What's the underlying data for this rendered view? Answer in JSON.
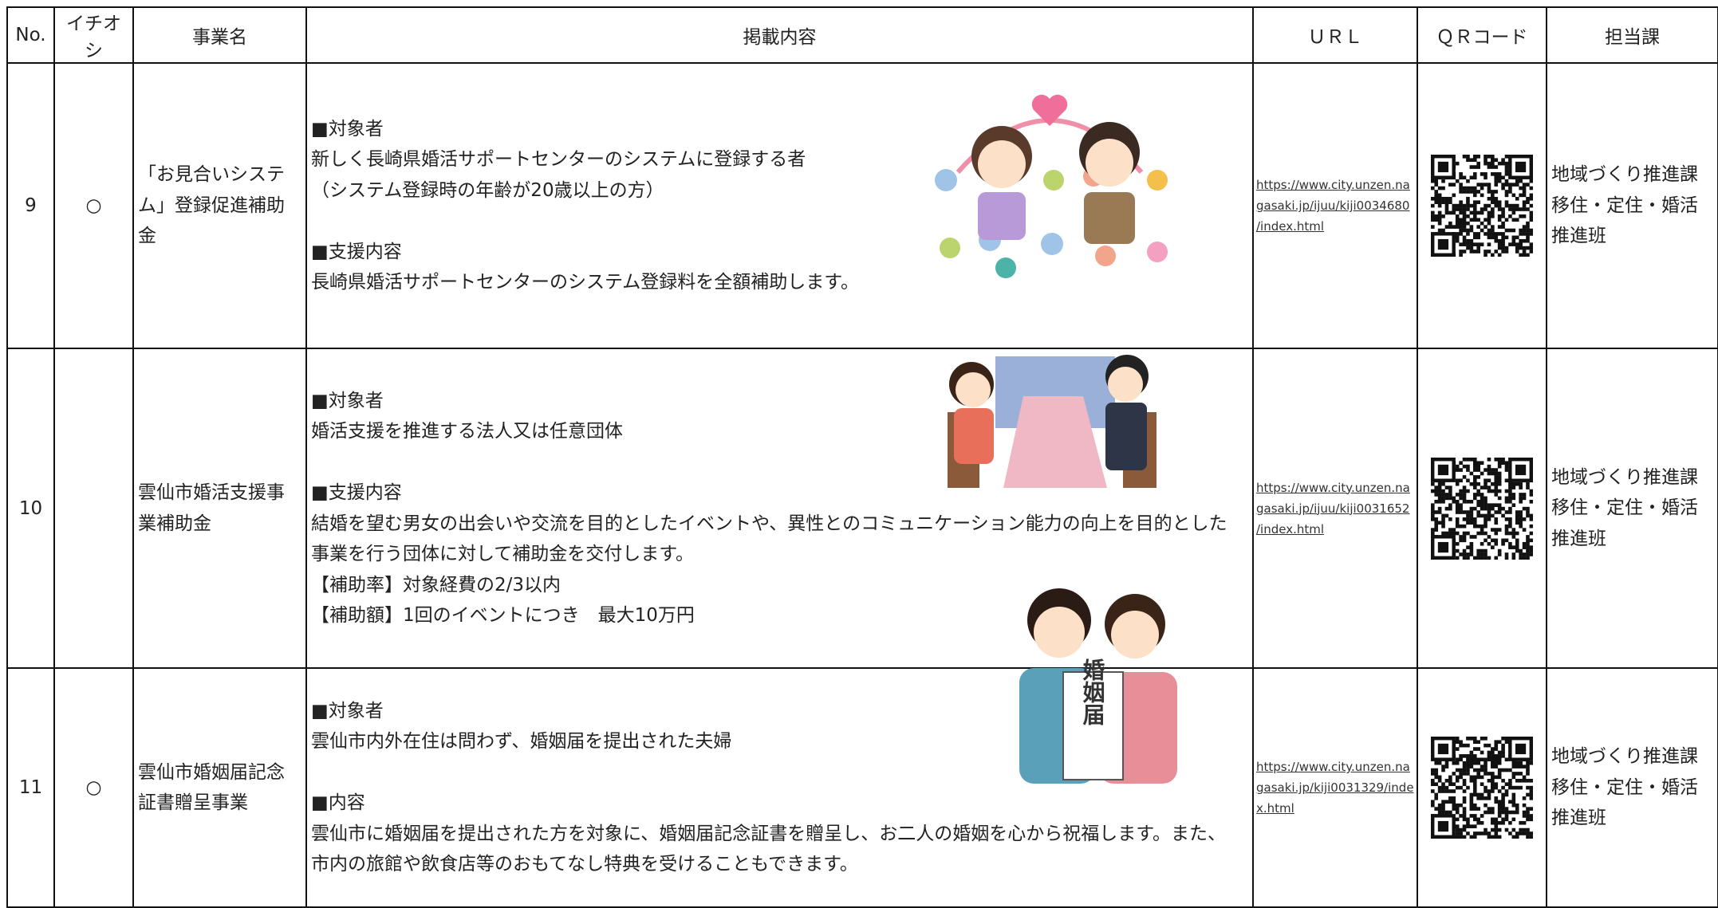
{
  "table": {
    "header": [
      "No.",
      "イチオシ",
      "事業名",
      "掲載内容",
      "ＵＲＬ",
      "ＱＲコード",
      "担当課"
    ],
    "rows": [
      {
        "no": "9",
        "pick": "○",
        "name": [
          "「お見合いシステ",
          "ム」登録促進補助",
          "金"
        ],
        "sections": [
          {
            "heading": "■対象者",
            "lines": [
              "新しく長崎県婚活サポートセンターのシステムに登録する者",
              "（システム登録時の年齢が20歳以上の方）"
            ]
          },
          {
            "heading": "■支援内容",
            "lines": [
              "長崎県婚活サポートセンターのシステム登録料を全額補助します。"
            ]
          }
        ],
        "url": [
          "https://www.city.unzen.na",
          "gasaki.jp/ijuu/kiji0034680",
          "/index.html"
        ],
        "dept": [
          "地域づくり推進課",
          "移住・定住・婚活",
          "推進班"
        ]
      },
      {
        "no": "10",
        "name": [
          "雲仙市婚活支援事",
          "業補助金"
        ],
        "sections": [
          {
            "heading": "■対象者",
            "lines": [
              "婚活支援を推進する法人又は任意団体"
            ]
          },
          {
            "heading": "■支援内容",
            "lines": [
              "結婚を望む男女の出会いや交流を目的としたイベントや、異性とのコミュニケーション能力の向上を目的とした",
              "事業を行う団体に対して補助金を交付します。",
              "【補助率】対象経費の2/3以内",
              "【補助額】1回のイベントにつき　最大10万円"
            ]
          }
        ],
        "url": [
          "https://www.city.unzen.na",
          "gasaki.jp/ijuu/kiji0031652",
          "/index.html"
        ],
        "dept": [
          "地域づくり推進課",
          "移住・定住・婚活",
          "推進班"
        ]
      },
      {
        "no": "11",
        "pick": "○",
        "name": [
          "雲仙市婚姻届記念",
          "証書贈呈事業"
        ],
        "sections": [
          {
            "heading": "■対象者",
            "lines": [
              "雲仙市内外在住は問わず、婚姻届を提出された夫婦"
            ]
          },
          {
            "heading": "■内容",
            "lines": [
              "雲仙市に婚姻届を提出された方を対象に、婚姻届記念証書を贈呈し、お二人の婚姻を心から祝福します。また、",
              "市内の旅館や飲食店等のおもてなし特典を受けることもできます。"
            ]
          }
        ],
        "url": [
          "https://www.city.unzen.na",
          "gasaki.jp/kiji0031329/inde",
          "x.html"
        ],
        "dept": [
          "地域づくり推進課",
          "移住・定住・婚活",
          "推進班"
        ]
      }
    ],
    "illustration_text": "婚姻届"
  }
}
